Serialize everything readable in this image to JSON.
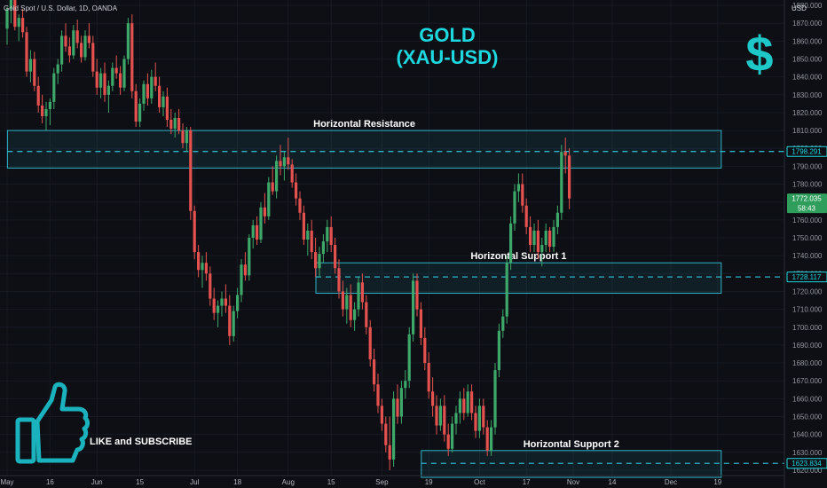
{
  "chart_data": {
    "type": "candlestick",
    "header": "Gold Spot / U.S. Dollar, 1D, OANDA",
    "title_line1": "GOLD",
    "title_line2": "(XAU-USD)",
    "currency_label": "USD",
    "currency_symbol": "$",
    "y_ticks": [
      1880,
      1870,
      1860,
      1850,
      1840,
      1830,
      1820,
      1810,
      1800,
      1790,
      1780,
      1770,
      1760,
      1750,
      1740,
      1730,
      1720,
      1710,
      1700,
      1690,
      1680,
      1670,
      1660,
      1650,
      1640,
      1630,
      1620
    ],
    "ylim": [
      1617,
      1883
    ],
    "x_ticks": [
      {
        "label": "May",
        "x_index": 0
      },
      {
        "label": "16",
        "x_index": 11
      },
      {
        "label": "Jun",
        "x_index": 23
      },
      {
        "label": "15",
        "x_index": 34
      },
      {
        "label": "Jul",
        "x_index": 48
      },
      {
        "label": "18",
        "x_index": 59
      },
      {
        "label": "Aug",
        "x_index": 72
      },
      {
        "label": "15",
        "x_index": 83
      },
      {
        "label": "Sep",
        "x_index": 96
      },
      {
        "label": "19",
        "x_index": 108
      },
      {
        "label": "Oct",
        "x_index": 121
      },
      {
        "label": "17",
        "x_index": 133
      },
      {
        "label": "Nov",
        "x_index": 145
      },
      {
        "label": "14",
        "x_index": 155
      },
      {
        "label": "Dec",
        "x_index": 170
      },
      {
        "label": "19",
        "x_index": 182
      }
    ],
    "last_price": "1772.035",
    "countdown": "58:43",
    "resistance_marker": "1798.291",
    "support1_marker": "1728.117",
    "support2_marker": "1623.834",
    "zones": [
      {
        "label": "Horizontal Resistance",
        "top": 1810,
        "bottom": 1789,
        "line": 1798.291,
        "x_start": 1,
        "x_end": 182
      },
      {
        "label": "Horizontal Support 1",
        "top": 1736,
        "bottom": 1719,
        "line": 1728.117,
        "x_start": 80,
        "x_end": 182
      },
      {
        "label": "Horizontal Support 2",
        "top": 1631,
        "bottom": 1616,
        "line": 1623.834,
        "x_start": 107,
        "x_end": 182
      }
    ],
    "up_color": "#3ea86a",
    "down_color": "#e4524f",
    "zone_color": "#2fb4c8",
    "title_color": "#1ed8e0",
    "candles": [
      [
        1867,
        1879,
        1858,
        1878
      ],
      [
        1878,
        1886,
        1870,
        1884
      ],
      [
        1884,
        1885,
        1866,
        1868
      ],
      [
        1868,
        1875,
        1860,
        1873
      ],
      [
        1873,
        1878,
        1862,
        1865
      ],
      [
        1865,
        1868,
        1840,
        1843
      ],
      [
        1843,
        1855,
        1837,
        1850
      ],
      [
        1850,
        1854,
        1832,
        1835
      ],
      [
        1835,
        1840,
        1820,
        1824
      ],
      [
        1824,
        1830,
        1814,
        1818
      ],
      [
        1818,
        1826,
        1810,
        1822
      ],
      [
        1822,
        1828,
        1813,
        1826
      ],
      [
        1826,
        1845,
        1822,
        1842
      ],
      [
        1842,
        1850,
        1836,
        1847
      ],
      [
        1847,
        1866,
        1843,
        1863
      ],
      [
        1863,
        1870,
        1854,
        1857
      ],
      [
        1857,
        1862,
        1848,
        1852
      ],
      [
        1852,
        1869,
        1850,
        1866
      ],
      [
        1866,
        1872,
        1856,
        1859
      ],
      [
        1859,
        1863,
        1848,
        1851
      ],
      [
        1851,
        1866,
        1849,
        1863
      ],
      [
        1863,
        1870,
        1856,
        1859
      ],
      [
        1859,
        1863,
        1840,
        1843
      ],
      [
        1843,
        1850,
        1830,
        1834
      ],
      [
        1834,
        1845,
        1828,
        1842
      ],
      [
        1842,
        1848,
        1826,
        1830
      ],
      [
        1830,
        1838,
        1820,
        1835
      ],
      [
        1835,
        1848,
        1832,
        1845
      ],
      [
        1845,
        1852,
        1839,
        1842
      ],
      [
        1842,
        1846,
        1830,
        1834
      ],
      [
        1834,
        1852,
        1832,
        1850
      ],
      [
        1850,
        1873,
        1847,
        1870
      ],
      [
        1870,
        1875,
        1828,
        1832
      ],
      [
        1832,
        1836,
        1812,
        1815
      ],
      [
        1815,
        1828,
        1812,
        1825
      ],
      [
        1825,
        1838,
        1821,
        1836
      ],
      [
        1836,
        1842,
        1824,
        1828
      ],
      [
        1828,
        1844,
        1825,
        1840
      ],
      [
        1840,
        1848,
        1832,
        1835
      ],
      [
        1835,
        1840,
        1820,
        1823
      ],
      [
        1823,
        1832,
        1818,
        1829
      ],
      [
        1829,
        1834,
        1812,
        1816
      ],
      [
        1816,
        1822,
        1808,
        1811
      ],
      [
        1811,
        1820,
        1806,
        1817
      ],
      [
        1817,
        1822,
        1808,
        1810
      ],
      [
        1810,
        1814,
        1800,
        1803
      ],
      [
        1803,
        1812,
        1798,
        1810
      ],
      [
        1810,
        1812,
        1760,
        1765
      ],
      [
        1765,
        1768,
        1738,
        1742
      ],
      [
        1742,
        1746,
        1728,
        1732
      ],
      [
        1732,
        1740,
        1722,
        1736
      ],
      [
        1736,
        1742,
        1726,
        1730
      ],
      [
        1730,
        1734,
        1712,
        1716
      ],
      [
        1716,
        1722,
        1704,
        1708
      ],
      [
        1708,
        1715,
        1700,
        1712
      ],
      [
        1712,
        1720,
        1706,
        1716
      ],
      [
        1716,
        1724,
        1708,
        1712
      ],
      [
        1712,
        1718,
        1690,
        1695
      ],
      [
        1695,
        1712,
        1692,
        1709
      ],
      [
        1709,
        1722,
        1705,
        1718
      ],
      [
        1718,
        1738,
        1714,
        1735
      ],
      [
        1735,
        1742,
        1726,
        1729
      ],
      [
        1729,
        1752,
        1726,
        1750
      ],
      [
        1750,
        1760,
        1744,
        1757
      ],
      [
        1757,
        1762,
        1746,
        1749
      ],
      [
        1749,
        1770,
        1747,
        1767
      ],
      [
        1767,
        1775,
        1758,
        1762
      ],
      [
        1762,
        1784,
        1760,
        1781
      ],
      [
        1781,
        1790,
        1774,
        1776
      ],
      [
        1776,
        1796,
        1772,
        1793
      ],
      [
        1793,
        1802,
        1785,
        1790
      ],
      [
        1790,
        1798,
        1782,
        1795
      ],
      [
        1795,
        1806,
        1788,
        1791
      ],
      [
        1791,
        1794,
        1778,
        1781
      ],
      [
        1781,
        1786,
        1768,
        1772
      ],
      [
        1772,
        1776,
        1760,
        1764
      ],
      [
        1764,
        1768,
        1746,
        1749
      ],
      [
        1749,
        1758,
        1740,
        1754
      ],
      [
        1754,
        1760,
        1738,
        1742
      ],
      [
        1742,
        1750,
        1728,
        1733
      ],
      [
        1733,
        1745,
        1728,
        1741
      ],
      [
        1741,
        1752,
        1736,
        1748
      ],
      [
        1748,
        1760,
        1742,
        1756
      ],
      [
        1756,
        1762,
        1742,
        1746
      ],
      [
        1746,
        1750,
        1730,
        1733
      ],
      [
        1733,
        1738,
        1716,
        1720
      ],
      [
        1720,
        1726,
        1706,
        1710
      ],
      [
        1710,
        1722,
        1702,
        1718
      ],
      [
        1718,
        1724,
        1700,
        1704
      ],
      [
        1704,
        1714,
        1698,
        1710
      ],
      [
        1710,
        1728,
        1706,
        1725
      ],
      [
        1725,
        1730,
        1710,
        1714
      ],
      [
        1714,
        1718,
        1696,
        1700
      ],
      [
        1700,
        1704,
        1678,
        1682
      ],
      [
        1682,
        1688,
        1664,
        1668
      ],
      [
        1668,
        1674,
        1652,
        1656
      ],
      [
        1656,
        1660,
        1642,
        1646
      ],
      [
        1646,
        1650,
        1630,
        1634
      ],
      [
        1634,
        1650,
        1620,
        1626
      ],
      [
        1626,
        1664,
        1622,
        1660
      ],
      [
        1660,
        1668,
        1646,
        1650
      ],
      [
        1650,
        1670,
        1646,
        1666
      ],
      [
        1666,
        1676,
        1660,
        1670
      ],
      [
        1670,
        1700,
        1666,
        1696
      ],
      [
        1696,
        1730,
        1692,
        1726
      ],
      [
        1726,
        1730,
        1706,
        1710
      ],
      [
        1710,
        1714,
        1690,
        1694
      ],
      [
        1694,
        1700,
        1676,
        1680
      ],
      [
        1680,
        1686,
        1660,
        1664
      ],
      [
        1664,
        1672,
        1650,
        1656
      ],
      [
        1656,
        1662,
        1640,
        1645
      ],
      [
        1645,
        1660,
        1642,
        1656
      ],
      [
        1656,
        1662,
        1636,
        1640
      ],
      [
        1640,
        1646,
        1628,
        1632
      ],
      [
        1632,
        1650,
        1630,
        1646
      ],
      [
        1646,
        1656,
        1640,
        1652
      ],
      [
        1652,
        1664,
        1646,
        1660
      ],
      [
        1660,
        1666,
        1648,
        1652
      ],
      [
        1652,
        1668,
        1650,
        1664
      ],
      [
        1664,
        1668,
        1648,
        1652
      ],
      [
        1652,
        1656,
        1638,
        1642
      ],
      [
        1642,
        1660,
        1638,
        1656
      ],
      [
        1656,
        1660,
        1640,
        1644
      ],
      [
        1644,
        1648,
        1628,
        1631
      ],
      [
        1631,
        1648,
        1628,
        1644
      ],
      [
        1644,
        1680,
        1640,
        1676
      ],
      [
        1676,
        1702,
        1672,
        1698
      ],
      [
        1698,
        1710,
        1694,
        1706
      ],
      [
        1706,
        1740,
        1702,
        1736
      ],
      [
        1736,
        1762,
        1732,
        1758
      ],
      [
        1758,
        1780,
        1754,
        1776
      ],
      [
        1776,
        1786,
        1770,
        1780
      ],
      [
        1780,
        1786,
        1764,
        1768
      ],
      [
        1768,
        1772,
        1752,
        1756
      ],
      [
        1756,
        1762,
        1742,
        1746
      ],
      [
        1746,
        1758,
        1742,
        1754
      ],
      [
        1754,
        1760,
        1738,
        1742
      ],
      [
        1742,
        1750,
        1734,
        1746
      ],
      [
        1746,
        1758,
        1742,
        1754
      ],
      [
        1754,
        1756,
        1742,
        1745
      ],
      [
        1745,
        1760,
        1742,
        1756
      ],
      [
        1756,
        1768,
        1752,
        1764
      ],
      [
        1764,
        1802,
        1760,
        1798
      ],
      [
        1798,
        1806,
        1786,
        1796
      ],
      [
        1796,
        1800,
        1766,
        1772
      ]
    ]
  }
}
